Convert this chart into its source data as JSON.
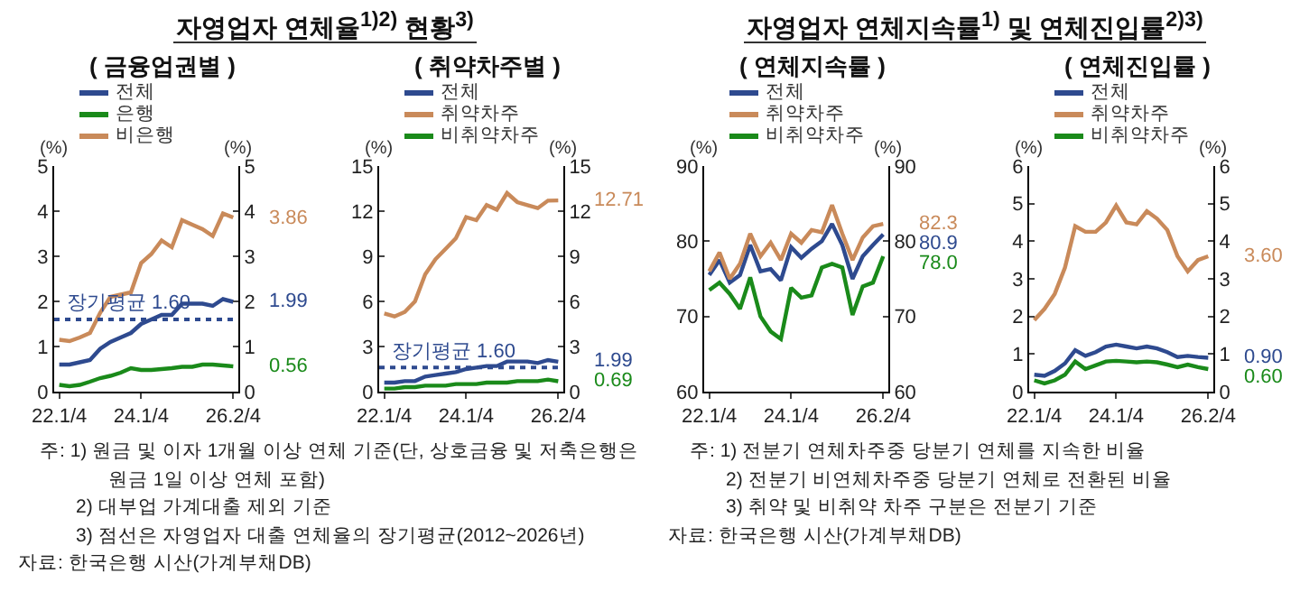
{
  "chart_data": [
    {
      "type": "line",
      "title": "자영업자 연체율$^{1)2)}$ 현황$^{3)}$",
      "subtitle": "( 금융업권별 )",
      "ylabel": "(%)",
      "y2label": "(%)",
      "legend": "top",
      "categories": [
        "22.1/4",
        null,
        null,
        null,
        null,
        null,
        null,
        null,
        "24.1/4",
        null,
        null,
        null,
        null,
        null,
        null,
        null,
        null,
        "26.2/4"
      ],
      "series": [
        {
          "name": "전체",
          "color": "#2e4a8f",
          "values": [
            0.6,
            0.6,
            0.65,
            0.7,
            0.95,
            1.1,
            1.2,
            1.3,
            1.5,
            1.6,
            1.7,
            1.7,
            1.95,
            1.95,
            1.95,
            1.9,
            2.05,
            1.99
          ],
          "value_labels": [
            null,
            null,
            null,
            null,
            null,
            null,
            null,
            null,
            null,
            null,
            null,
            null,
            null,
            null,
            null,
            null,
            null,
            "1.99"
          ]
        },
        {
          "name": "은행",
          "color": "#1a8a1a",
          "values": [
            0.15,
            0.12,
            0.15,
            0.22,
            0.3,
            0.35,
            0.42,
            0.52,
            0.48,
            0.48,
            0.5,
            0.52,
            0.55,
            0.55,
            0.6,
            0.6,
            0.58,
            0.56
          ],
          "value_labels": [
            null,
            null,
            null,
            null,
            null,
            null,
            null,
            null,
            null,
            null,
            null,
            null,
            null,
            null,
            null,
            null,
            null,
            "0.56"
          ]
        },
        {
          "name": "비은행",
          "color": "#c98a5a",
          "values": [
            1.15,
            1.12,
            1.2,
            1.3,
            1.75,
            2.1,
            2.15,
            2.2,
            2.85,
            3.05,
            3.35,
            3.2,
            3.8,
            3.7,
            3.6,
            3.45,
            3.95,
            3.86
          ],
          "value_labels": [
            null,
            null,
            null,
            null,
            null,
            null,
            null,
            null,
            null,
            null,
            null,
            null,
            null,
            null,
            null,
            null,
            null,
            "3.86"
          ]
        }
      ],
      "ylim": [
        0,
        5
      ],
      "yticks": [
        0,
        1,
        2,
        3,
        4,
        5
      ],
      "y2lim": [
        0,
        5
      ],
      "y2ticks": [
        0,
        1,
        2,
        3,
        4,
        5
      ],
      "ref_lines": [
        {
          "axis": "y",
          "value": 1.6,
          "label": "장기평균 1.60",
          "color": "#2e4a8f",
          "line_style": "dotted"
        }
      ],
      "annotations": [
        "주: 1) 원금 및 이자 1개월 이상 연체 기준(단, 상호금융 및 저축은행은 원금 1일 이상 연체 포함)",
        "2) 대부업 가계대출 제외 기준",
        "3) 점선은 자영업자 대출 연체율의 장기평균(2012~2026년)",
        "자료: 한국은행 시산(가계부채DB)"
      ]
    },
    {
      "type": "line",
      "subtitle": "( 취약차주별 )",
      "ylabel": "(%)",
      "y2label": "(%)",
      "legend": "top",
      "categories": [
        "22.1/4",
        null,
        null,
        null,
        null,
        null,
        null,
        null,
        "24.1/4",
        null,
        null,
        null,
        null,
        null,
        null,
        null,
        null,
        "26.2/4"
      ],
      "series": [
        {
          "name": "전체",
          "color": "#2e4a8f",
          "values": [
            0.6,
            0.6,
            0.7,
            0.7,
            1.0,
            1.1,
            1.2,
            1.3,
            1.5,
            1.6,
            1.7,
            1.7,
            2.0,
            2.0,
            2.0,
            1.9,
            2.1,
            1.99
          ],
          "value_labels": [
            null,
            null,
            null,
            null,
            null,
            null,
            null,
            null,
            null,
            null,
            null,
            null,
            null,
            null,
            null,
            null,
            null,
            "1.99"
          ]
        },
        {
          "name": "취약차주",
          "color": "#c98a5a",
          "values": [
            5.2,
            5.0,
            5.3,
            6.0,
            7.8,
            8.8,
            9.5,
            10.2,
            11.6,
            11.4,
            12.4,
            12.1,
            13.2,
            12.6,
            12.4,
            12.2,
            12.7,
            12.71
          ],
          "value_labels": [
            null,
            null,
            null,
            null,
            null,
            null,
            null,
            null,
            null,
            null,
            null,
            null,
            null,
            null,
            null,
            null,
            null,
            "12.71"
          ]
        },
        {
          "name": "비취약차주",
          "color": "#1a8a1a",
          "values": [
            0.2,
            0.2,
            0.3,
            0.3,
            0.4,
            0.4,
            0.4,
            0.5,
            0.5,
            0.5,
            0.6,
            0.6,
            0.6,
            0.7,
            0.7,
            0.7,
            0.8,
            0.69
          ],
          "value_labels": [
            null,
            null,
            null,
            null,
            null,
            null,
            null,
            null,
            null,
            null,
            null,
            null,
            null,
            null,
            null,
            null,
            null,
            "0.69"
          ]
        }
      ],
      "ylim": [
        0,
        15
      ],
      "yticks": [
        0,
        3,
        6,
        9,
        12,
        15
      ],
      "y2lim": [
        0,
        15
      ],
      "y2ticks": [
        0,
        3,
        6,
        9,
        12,
        15
      ],
      "ref_lines": [
        {
          "axis": "y",
          "value": 1.6,
          "label": "장기평균 1.60",
          "color": "#2e4a8f",
          "line_style": "dotted"
        }
      ]
    },
    {
      "type": "line",
      "title": "자영업자 연체지속률$^{1)}$ 및 연체진입률$^{2)3)}$",
      "subtitle": "( 연체지속률 )",
      "ylabel": "(%)",
      "y2label": "(%)",
      "legend": "top",
      "categories": [
        "22.1/4",
        null,
        null,
        null,
        null,
        null,
        null,
        null,
        "24.1/4",
        null,
        null,
        null,
        null,
        null,
        null,
        null,
        null,
        "26.2/4"
      ],
      "series": [
        {
          "name": "전체",
          "color": "#2e4a8f",
          "values": [
            75.5,
            77.5,
            74.5,
            75.5,
            79.5,
            76,
            76.3,
            74.8,
            79.2,
            77.8,
            79,
            80,
            82.3,
            79.5,
            75,
            78,
            79.5,
            80.9
          ],
          "value_labels": [
            null,
            null,
            null,
            null,
            null,
            null,
            null,
            null,
            null,
            null,
            null,
            null,
            null,
            null,
            null,
            null,
            null,
            "80.9"
          ]
        },
        {
          "name": "취약차주",
          "color": "#c98a5a",
          "values": [
            76,
            78.5,
            75,
            77,
            81,
            78,
            79.8,
            77.5,
            81,
            79.8,
            81.5,
            81.2,
            84.8,
            81,
            77.5,
            80.5,
            82,
            82.3
          ],
          "value_labels": [
            null,
            null,
            null,
            null,
            null,
            null,
            null,
            null,
            null,
            null,
            null,
            null,
            null,
            null,
            null,
            null,
            null,
            "82.3"
          ]
        },
        {
          "name": "비취약차주",
          "color": "#1a8a1a",
          "values": [
            73.5,
            74.5,
            73,
            71,
            75.2,
            70,
            68,
            67,
            73.8,
            72.5,
            72.8,
            76.5,
            77,
            76.5,
            70.2,
            74,
            74.5,
            78.0
          ],
          "value_labels": [
            null,
            null,
            null,
            null,
            null,
            null,
            null,
            null,
            null,
            null,
            null,
            null,
            null,
            null,
            null,
            null,
            null,
            "78.0"
          ]
        }
      ],
      "ylim": [
        60,
        90
      ],
      "yticks": [
        60,
        70,
        80,
        90
      ],
      "y2lim": [
        60,
        90
      ],
      "y2ticks": [
        60,
        70,
        80,
        90
      ],
      "annotations": [
        "주: 1) 전분기 연체차주중 당분기 연체를 지속한 비율",
        "2) 전분기 비연체차주중 당분기 연체로 전환된 비율",
        "3) 취약 및 비취약 차주 구분은 전분기 기준",
        "자료: 한국은행 시산(가계부채DB)"
      ]
    },
    {
      "type": "line",
      "subtitle": "( 연체진입률 )",
      "ylabel": "(%)",
      "y2label": "(%)",
      "legend": "top",
      "categories": [
        "22.1/4",
        null,
        null,
        null,
        null,
        null,
        null,
        null,
        "24.1/4",
        null,
        null,
        null,
        null,
        null,
        null,
        null,
        null,
        "26.2/4"
      ],
      "series": [
        {
          "name": "전체",
          "color": "#2e4a8f",
          "values": [
            0.45,
            0.42,
            0.55,
            0.75,
            1.1,
            0.95,
            1.05,
            1.2,
            1.25,
            1.2,
            1.15,
            1.2,
            1.15,
            1.05,
            0.92,
            0.95,
            0.92,
            0.9
          ],
          "value_labels": [
            null,
            null,
            null,
            null,
            null,
            null,
            null,
            null,
            null,
            null,
            null,
            null,
            null,
            null,
            null,
            null,
            null,
            "0.90"
          ]
        },
        {
          "name": "취약차주",
          "color": "#c98a5a",
          "values": [
            1.9,
            2.2,
            2.6,
            3.3,
            4.4,
            4.25,
            4.25,
            4.5,
            4.95,
            4.5,
            4.45,
            4.8,
            4.6,
            4.3,
            3.6,
            3.2,
            3.5,
            3.6
          ],
          "value_labels": [
            null,
            null,
            null,
            null,
            null,
            null,
            null,
            null,
            null,
            null,
            null,
            null,
            null,
            null,
            null,
            null,
            null,
            "3.60"
          ]
        },
        {
          "name": "비취약차주",
          "color": "#1a8a1a",
          "values": [
            0.3,
            0.22,
            0.3,
            0.45,
            0.8,
            0.6,
            0.7,
            0.8,
            0.82,
            0.8,
            0.78,
            0.8,
            0.78,
            0.72,
            0.65,
            0.72,
            0.65,
            0.6
          ],
          "value_labels": [
            null,
            null,
            null,
            null,
            null,
            null,
            null,
            null,
            null,
            null,
            null,
            null,
            null,
            null,
            null,
            null,
            null,
            "0.60"
          ]
        }
      ],
      "ylim": [
        0,
        6
      ],
      "yticks": [
        0,
        1,
        2,
        3,
        4,
        5,
        6
      ],
      "y2lim": [
        0,
        6
      ],
      "y2ticks": [
        0,
        1,
        2,
        3,
        4,
        5,
        6
      ]
    }
  ]
}
